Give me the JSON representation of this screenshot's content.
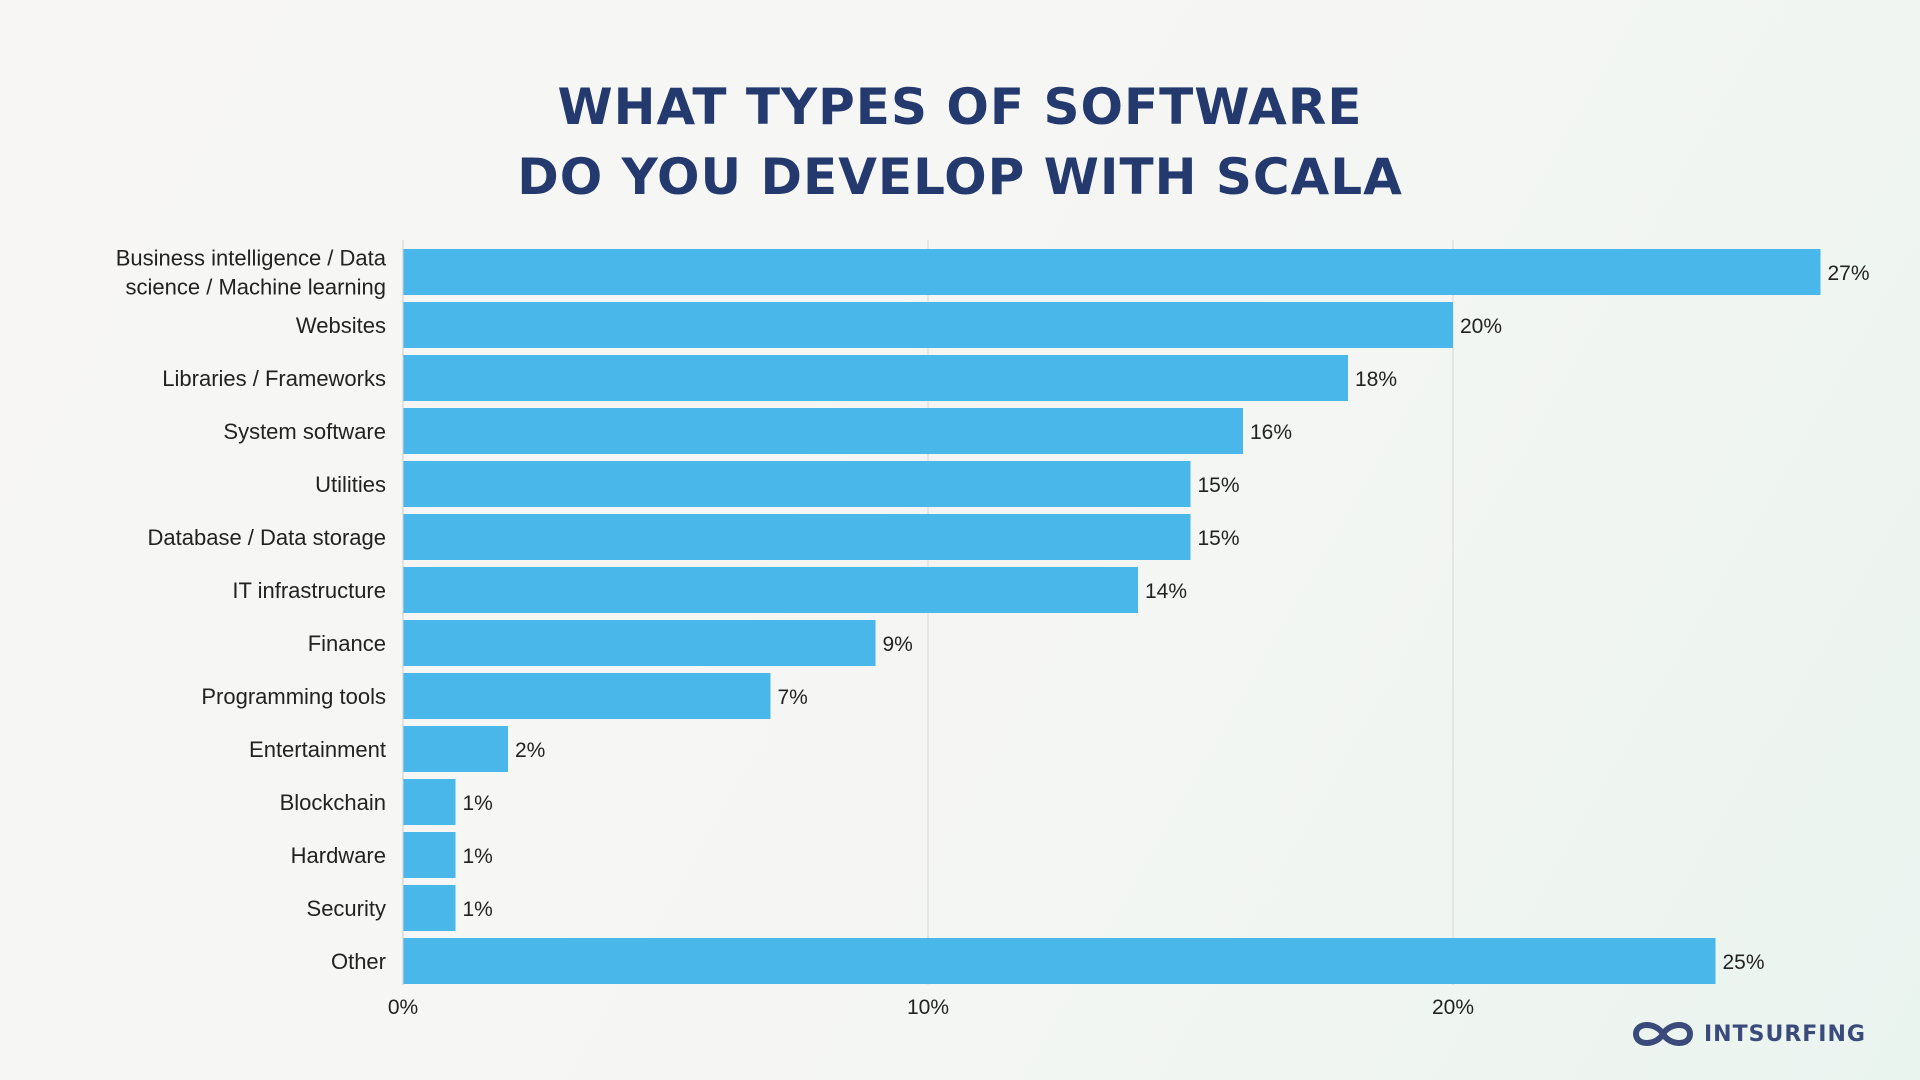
{
  "title": {
    "line1": "WHAT TYPES OF SOFTWARE",
    "line2": "DO YOU DEVELOP WITH SCALA"
  },
  "logo": {
    "text": "INTSURFING",
    "icon": "infinity-logo-icon"
  },
  "colors": {
    "bar": "#49b7e9",
    "title": "#243a6e",
    "text": "#222222",
    "grid": "#d8d8d8"
  },
  "chart_data": {
    "type": "bar",
    "orientation": "horizontal",
    "categories": [
      [
        "Business intelligence / Data",
        "science / Machine learning"
      ],
      [
        "Websites"
      ],
      [
        "Libraries / Frameworks"
      ],
      [
        "System software"
      ],
      [
        "Utilities"
      ],
      [
        "Database / Data storage"
      ],
      [
        "IT infrastructure"
      ],
      [
        "Finance"
      ],
      [
        "Programming tools"
      ],
      [
        "Entertainment"
      ],
      [
        "Blockchain"
      ],
      [
        "Hardware"
      ],
      [
        "Security"
      ],
      [
        "Other"
      ]
    ],
    "values": [
      27,
      20,
      18,
      16,
      15,
      15,
      14,
      9,
      7,
      2,
      1,
      1,
      1,
      25
    ],
    "value_labels": [
      "27%",
      "20%",
      "18%",
      "16%",
      "15%",
      "15%",
      "14%",
      "9%",
      "7%",
      "2%",
      "1%",
      "1%",
      "1%",
      "25%"
    ],
    "xticks": [
      0,
      10,
      20
    ],
    "xtick_labels": [
      "0%",
      "10%",
      "20%"
    ],
    "xlim": [
      0,
      27
    ],
    "grid": true
  }
}
